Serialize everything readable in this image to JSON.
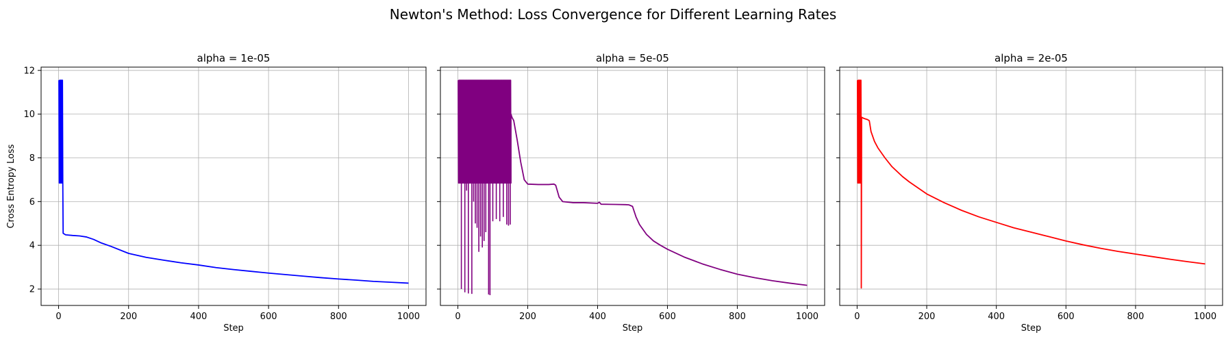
{
  "figure": {
    "title": "Newton's Method: Loss Convergence for Different Learning Rates"
  },
  "chart_data": [
    {
      "type": "line",
      "title": "alpha = 1e-05",
      "xlabel": "Step",
      "ylabel": "Cross Entropy Loss",
      "xlim": [
        -50,
        1050
      ],
      "ylim": [
        1.25,
        12.15
      ],
      "xticks": [
        0,
        200,
        400,
        600,
        800,
        1000
      ],
      "yticks": [
        2,
        4,
        6,
        8,
        10,
        12
      ],
      "grid": true,
      "series": [
        {
          "color": "#0000ff",
          "oscillation": {
            "x_start": 1,
            "x_end": 12,
            "high": 11.55,
            "low": 6.85
          },
          "x": [
            12,
            13,
            20,
            40,
            60,
            80,
            100,
            120,
            150,
            200,
            250,
            300,
            350,
            400,
            450,
            500,
            550,
            600,
            650,
            700,
            750,
            800,
            850,
            900,
            950,
            1000
          ],
          "y": [
            6.85,
            4.55,
            4.48,
            4.45,
            4.43,
            4.38,
            4.27,
            4.12,
            3.95,
            3.63,
            3.45,
            3.32,
            3.2,
            3.1,
            2.98,
            2.89,
            2.81,
            2.73,
            2.66,
            2.59,
            2.52,
            2.46,
            2.41,
            2.35,
            2.31,
            2.27
          ]
        }
      ]
    },
    {
      "type": "line",
      "title": "alpha = 5e-05",
      "xlabel": "Step",
      "ylabel": "",
      "xlim": [
        -50,
        1050
      ],
      "ylim": [
        1.25,
        12.15
      ],
      "xticks": [
        0,
        200,
        400,
        600,
        800,
        1000
      ],
      "yticks": [
        2,
        4,
        6,
        8,
        10,
        12
      ],
      "grid": true,
      "series": [
        {
          "color": "#800080",
          "oscillation": {
            "x_start": 1,
            "x_end": 152,
            "high": 11.55,
            "low": 6.85
          },
          "x": [
            152,
            155,
            160,
            170,
            180,
            190,
            200,
            230,
            260,
            275,
            280,
            290,
            300,
            330,
            360,
            400,
            405,
            410,
            450,
            480,
            490,
            500,
            510,
            520,
            540,
            560,
            580,
            600,
            650,
            700,
            750,
            800,
            850,
            900,
            950,
            1000
          ],
          "y": [
            10,
            9.85,
            9.7,
            8.8,
            7.8,
            7.0,
            6.8,
            6.78,
            6.78,
            6.8,
            6.75,
            6.2,
            6.0,
            5.95,
            5.95,
            5.92,
            5.97,
            5.88,
            5.87,
            5.86,
            5.85,
            5.78,
            5.3,
            4.95,
            4.5,
            4.2,
            4.0,
            3.82,
            3.45,
            3.15,
            2.9,
            2.68,
            2.52,
            2.38,
            2.27,
            2.17
          ]
        }
      ],
      "dips": [
        {
          "x": 10,
          "y": 2.0
        },
        {
          "x": 15,
          "y": 6.85
        },
        {
          "x": 20,
          "y": 1.85
        },
        {
          "x": 25,
          "y": 6.5
        },
        {
          "x": 30,
          "y": 1.8
        },
        {
          "x": 40,
          "y": 1.78
        },
        {
          "x": 45,
          "y": 6.0
        },
        {
          "x": 50,
          "y": 5.0
        },
        {
          "x": 55,
          "y": 4.8
        },
        {
          "x": 60,
          "y": 3.7
        },
        {
          "x": 65,
          "y": 4.4
        },
        {
          "x": 70,
          "y": 3.9
        },
        {
          "x": 75,
          "y": 4.2
        },
        {
          "x": 80,
          "y": 4.6
        },
        {
          "x": 88,
          "y": 1.75
        },
        {
          "x": 92,
          "y": 1.72
        },
        {
          "x": 100,
          "y": 5.1
        },
        {
          "x": 110,
          "y": 5.2
        },
        {
          "x": 120,
          "y": 5.1
        },
        {
          "x": 130,
          "y": 5.3
        },
        {
          "x": 140,
          "y": 4.95
        },
        {
          "x": 145,
          "y": 4.9
        },
        {
          "x": 150,
          "y": 4.95
        }
      ]
    },
    {
      "type": "line",
      "title": "alpha = 2e-05",
      "xlabel": "Step",
      "ylabel": "",
      "xlim": [
        -50,
        1050
      ],
      "ylim": [
        1.25,
        12.15
      ],
      "xticks": [
        0,
        200,
        400,
        600,
        800,
        1000
      ],
      "yticks": [
        2,
        4,
        6,
        8,
        10,
        12
      ],
      "grid": true,
      "series": [
        {
          "color": "#ff0000",
          "oscillation": {
            "x_start": 1,
            "x_end": 12,
            "high": 11.55,
            "low": 6.85
          },
          "x": [
            12,
            13,
            14,
            20,
            30,
            35,
            40,
            50,
            60,
            80,
            100,
            130,
            150,
            200,
            250,
            300,
            350,
            400,
            450,
            500,
            550,
            600,
            650,
            700,
            750,
            800,
            850,
            900,
            950,
            1000
          ],
          "y": [
            2.05,
            9.85,
            9.85,
            9.8,
            9.75,
            9.7,
            9.2,
            8.75,
            8.45,
            8.0,
            7.6,
            7.15,
            6.9,
            6.35,
            5.95,
            5.6,
            5.3,
            5.05,
            4.8,
            4.6,
            4.4,
            4.2,
            4.02,
            3.86,
            3.72,
            3.6,
            3.48,
            3.36,
            3.25,
            3.15
          ]
        }
      ]
    }
  ]
}
